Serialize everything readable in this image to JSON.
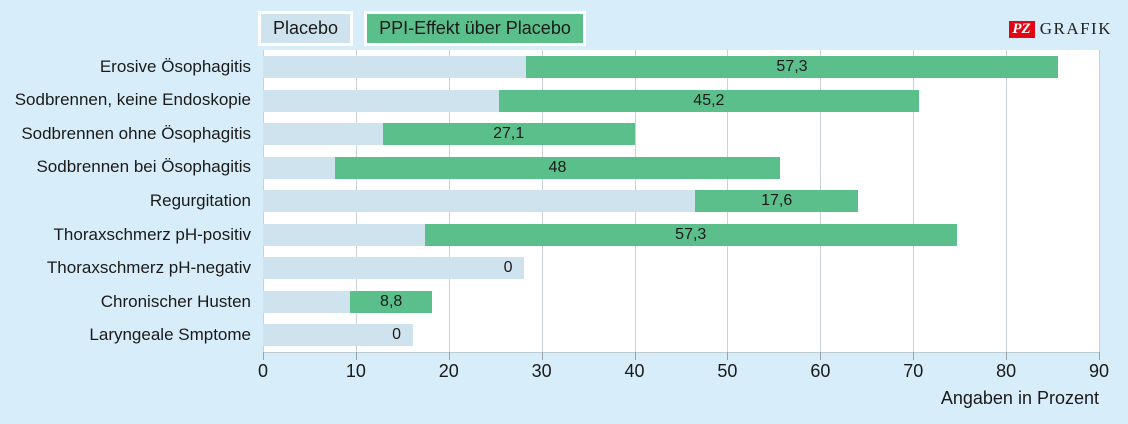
{
  "legend": {
    "placebo_label": "Placebo",
    "ppi_label": "PPI-Effekt über Placebo"
  },
  "branding": {
    "logo_pz": "PZ",
    "logo_grafik": "GRAFIK"
  },
  "chart_data": {
    "type": "bar",
    "orientation": "horizontal",
    "stacked": true,
    "grid": true,
    "xlabel": "Angaben in Prozent",
    "xlim": [
      0,
      90
    ],
    "xticks": [
      0,
      10,
      20,
      30,
      40,
      50,
      60,
      70,
      80,
      90
    ],
    "categories": [
      "Erosive Ösophagitis",
      "Sodbrennen, keine Endoskopie",
      "Sodbrennen ohne Ösophagitis",
      "Sodbrennen bei Ösophagitis",
      "Regurgitation",
      "Thoraxschmerz pH-positiv",
      "Thoraxschmerz pH-negativ",
      "Chronischer Husten",
      "Laryngeale Smptome"
    ],
    "series": [
      {
        "name": "Placebo",
        "color": "#cfe3ee",
        "values": [
          28.3,
          25.4,
          12.9,
          7.7,
          46.5,
          17.4,
          28.1,
          9.4,
          16.1
        ]
      },
      {
        "name": "PPI-Effekt über Placebo",
        "color": "#5bbf8b",
        "values": [
          57.3,
          45.2,
          27.1,
          48,
          17.6,
          57.3,
          0,
          8.8,
          0
        ]
      }
    ],
    "bar_labels": [
      "57,3",
      "45,2",
      "27,1",
      "48",
      "17,6",
      "57,3",
      "0",
      "8,8",
      "0"
    ]
  },
  "colors": {
    "background": "#d7edf9",
    "plot_background": "#ffffff",
    "placebo_bar": "#cfe3ee",
    "ppi_bar": "#5bbf8b",
    "gridline": "#c8d2d8",
    "text": "#1a1a1a",
    "logo_red": "#e30613"
  }
}
